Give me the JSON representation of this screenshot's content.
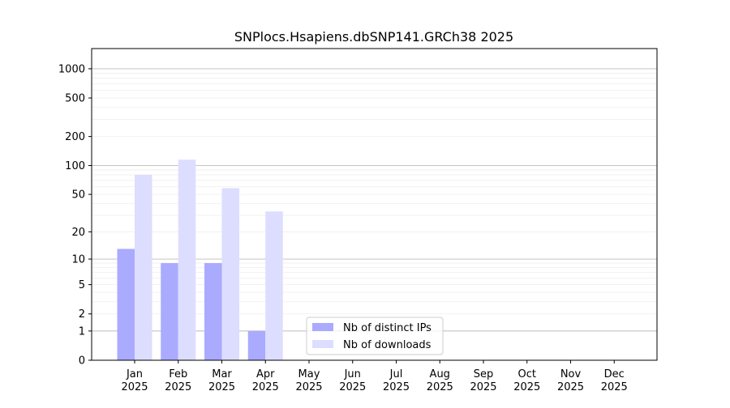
{
  "chart_data": {
    "type": "bar",
    "title": "SNPlocs.Hsapiens.dbSNP141.GRCh38 2025",
    "scale": "log (shifted, 0 shown)",
    "y_ticks": [
      0,
      1,
      2,
      5,
      10,
      20,
      50,
      100,
      200,
      500,
      1000
    ],
    "categories": [
      [
        "Jan",
        "2025"
      ],
      [
        "Feb",
        "2025"
      ],
      [
        "Mar",
        "2025"
      ],
      [
        "Apr",
        "2025"
      ],
      [
        "May",
        "2025"
      ],
      [
        "Jun",
        "2025"
      ],
      [
        "Jul",
        "2025"
      ],
      [
        "Aug",
        "2025"
      ],
      [
        "Sep",
        "2025"
      ],
      [
        "Oct",
        "2025"
      ],
      [
        "Nov",
        "2025"
      ],
      [
        "Dec",
        "2025"
      ]
    ],
    "series": [
      {
        "name": "Nb of distinct IPs",
        "color": "#aaaaff",
        "values": [
          13,
          9,
          9,
          1,
          0,
          0,
          0,
          0,
          0,
          0,
          0,
          0
        ]
      },
      {
        "name": "Nb of downloads",
        "color": "#ddddff",
        "values": [
          80,
          115,
          58,
          33,
          0,
          0,
          0,
          0,
          0,
          0,
          0,
          0
        ]
      }
    ],
    "legend_position": "lower-center",
    "grid": true
  }
}
